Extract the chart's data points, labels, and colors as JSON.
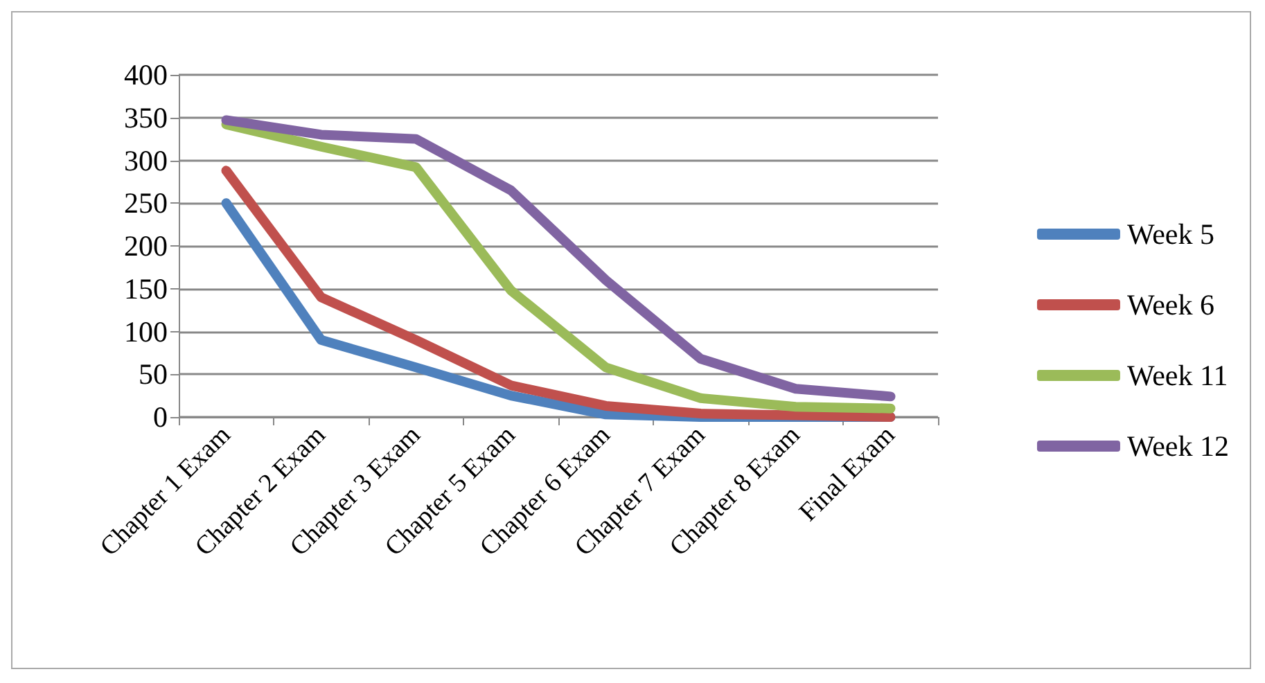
{
  "chart_data": {
    "type": "line",
    "categories": [
      "Chapter 1 Exam",
      "Chapter 2 Exam",
      "Chapter 3 Exam",
      "Chapter 5 Exam",
      "Chapter 6 Exam",
      "Chapter 7 Exam",
      "Chapter 8 Exam",
      "Final Exam"
    ],
    "series": [
      {
        "name": "Week 5",
        "color": "#4f81bd",
        "values": [
          250,
          90,
          58,
          25,
          3,
          0,
          0,
          0
        ]
      },
      {
        "name": "Week 6",
        "color": "#c0504d",
        "values": [
          288,
          140,
          90,
          37,
          13,
          4,
          2,
          0
        ]
      },
      {
        "name": "Week 11",
        "color": "#9bbb59",
        "values": [
          342,
          316,
          292,
          148,
          58,
          22,
          12,
          10
        ]
      },
      {
        "name": "Week 12",
        "color": "#8064a2",
        "values": [
          347,
          330,
          325,
          265,
          160,
          68,
          33,
          24
        ]
      }
    ],
    "ylim": [
      0,
      400
    ],
    "yticks": [
      0,
      50,
      100,
      150,
      200,
      250,
      300,
      350,
      400
    ],
    "grid": "y",
    "legend": "right",
    "marker": "none",
    "line_style": "solid"
  }
}
